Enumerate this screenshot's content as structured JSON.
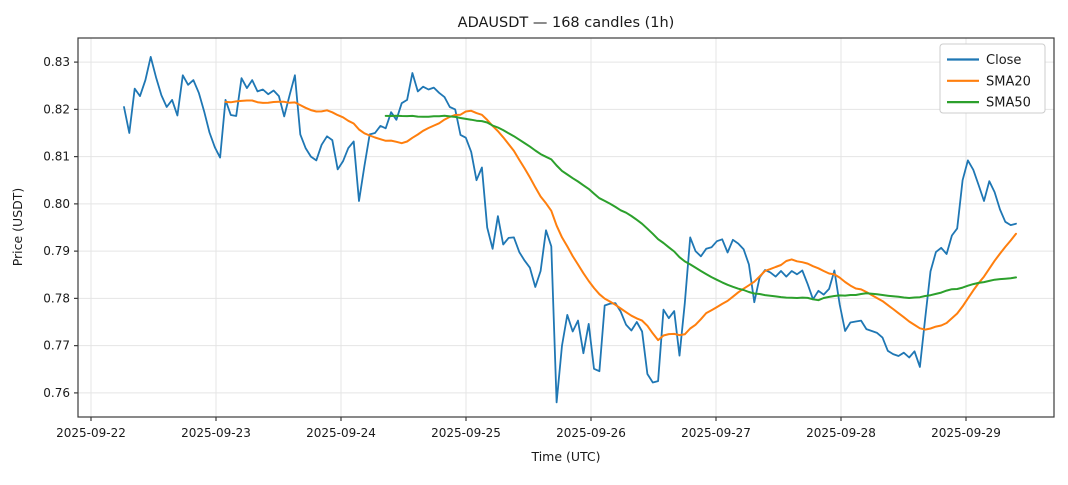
{
  "title": "ADAUSDT — 168 candles (1h)",
  "axes": {
    "xlabel": "Time (UTC)",
    "ylabel": "Price (USDT)"
  },
  "legend": {
    "position": "upper right",
    "entries": [
      {
        "label": "Close",
        "color": "#1f77b4"
      },
      {
        "label": "SMA20",
        "color": "#ff7f0e"
      },
      {
        "label": "SMA50",
        "color": "#2ca02c"
      }
    ]
  },
  "chart_data": {
    "type": "line",
    "title": "ADAUSDT — 168 candles (1h)",
    "xlabel": "Time (UTC)",
    "ylabel": "Price (USDT)",
    "x_tick_labels": [
      "2025-09-22",
      "2025-09-23",
      "2025-09-24",
      "2025-09-25",
      "2025-09-26",
      "2025-09-27",
      "2025-09-28",
      "2025-09-29"
    ],
    "y_tick_labels": [
      "0.76",
      "0.77",
      "0.78",
      "0.79",
      "0.80",
      "0.81",
      "0.82",
      "0.83"
    ],
    "ylim": [
      0.7549,
      0.8351
    ],
    "grid": true,
    "interval": "1h",
    "candles": 168,
    "legend_position": "upper right",
    "series": [
      {
        "name": "Close",
        "color": "#1f77b4",
        "values": [
          0.8205,
          0.815,
          0.8244,
          0.8228,
          0.8262,
          0.8311,
          0.8268,
          0.823,
          0.8205,
          0.822,
          0.8187,
          0.8272,
          0.8252,
          0.8262,
          0.8235,
          0.8196,
          0.8151,
          0.812,
          0.8098,
          0.822,
          0.8188,
          0.8186,
          0.8266,
          0.8245,
          0.8262,
          0.8238,
          0.8242,
          0.8232,
          0.824,
          0.8228,
          0.8185,
          0.823,
          0.8272,
          0.8147,
          0.8118,
          0.81,
          0.8092,
          0.8125,
          0.8143,
          0.8135,
          0.8073,
          0.809,
          0.8118,
          0.8132,
          0.8006,
          0.808,
          0.8147,
          0.815,
          0.8165,
          0.816,
          0.8194,
          0.8178,
          0.8213,
          0.822,
          0.8277,
          0.8238,
          0.8248,
          0.8242,
          0.8246,
          0.8235,
          0.8226,
          0.8205,
          0.82,
          0.8146,
          0.814,
          0.811,
          0.805,
          0.8077,
          0.795,
          0.7905,
          0.7974,
          0.7914,
          0.7928,
          0.7929,
          0.7898,
          0.788,
          0.7865,
          0.7824,
          0.7858,
          0.7944,
          0.791,
          0.758,
          0.77,
          0.7765,
          0.773,
          0.7753,
          0.7684,
          0.7746,
          0.7651,
          0.7646,
          0.7785,
          0.7789,
          0.779,
          0.7772,
          0.7744,
          0.7732,
          0.775,
          0.773,
          0.764,
          0.7622,
          0.7625,
          0.7776,
          0.7758,
          0.7773,
          0.7679,
          0.779,
          0.7929,
          0.79,
          0.7889,
          0.7905,
          0.7908,
          0.7921,
          0.7925,
          0.7897,
          0.7924,
          0.7916,
          0.7904,
          0.7872,
          0.7792,
          0.7844,
          0.786,
          0.7855,
          0.7846,
          0.7858,
          0.7846,
          0.7858,
          0.7851,
          0.7859,
          0.783,
          0.7798,
          0.7816,
          0.7808,
          0.782,
          0.7859,
          0.7787,
          0.7731,
          0.7749,
          0.7751,
          0.7753,
          0.7735,
          0.7731,
          0.7727,
          0.7717,
          0.7689,
          0.7682,
          0.7678,
          0.7685,
          0.7675,
          0.7688,
          0.7655,
          0.7758,
          0.7857,
          0.7898,
          0.7907,
          0.7894,
          0.7933,
          0.7948,
          0.805,
          0.8092,
          0.8072,
          0.804,
          0.8006,
          0.8048,
          0.8025,
          0.7988,
          0.7962,
          0.7955,
          0.7958
        ]
      },
      {
        "name": "SMA20",
        "color": "#ff7f0e",
        "derived": "rolling_mean_of_close",
        "window": 20
      },
      {
        "name": "SMA50",
        "color": "#2ca02c",
        "derived": "rolling_mean_of_close",
        "window": 50
      }
    ]
  },
  "style": {
    "background": "#ffffff",
    "grid_color": "#e5e5e5",
    "spine_color": "#3b3b3b",
    "text_color": "#1a1a1a",
    "close_color": "#1f77b4",
    "sma20_color": "#ff7f0e",
    "sma50_color": "#2ca02c"
  }
}
